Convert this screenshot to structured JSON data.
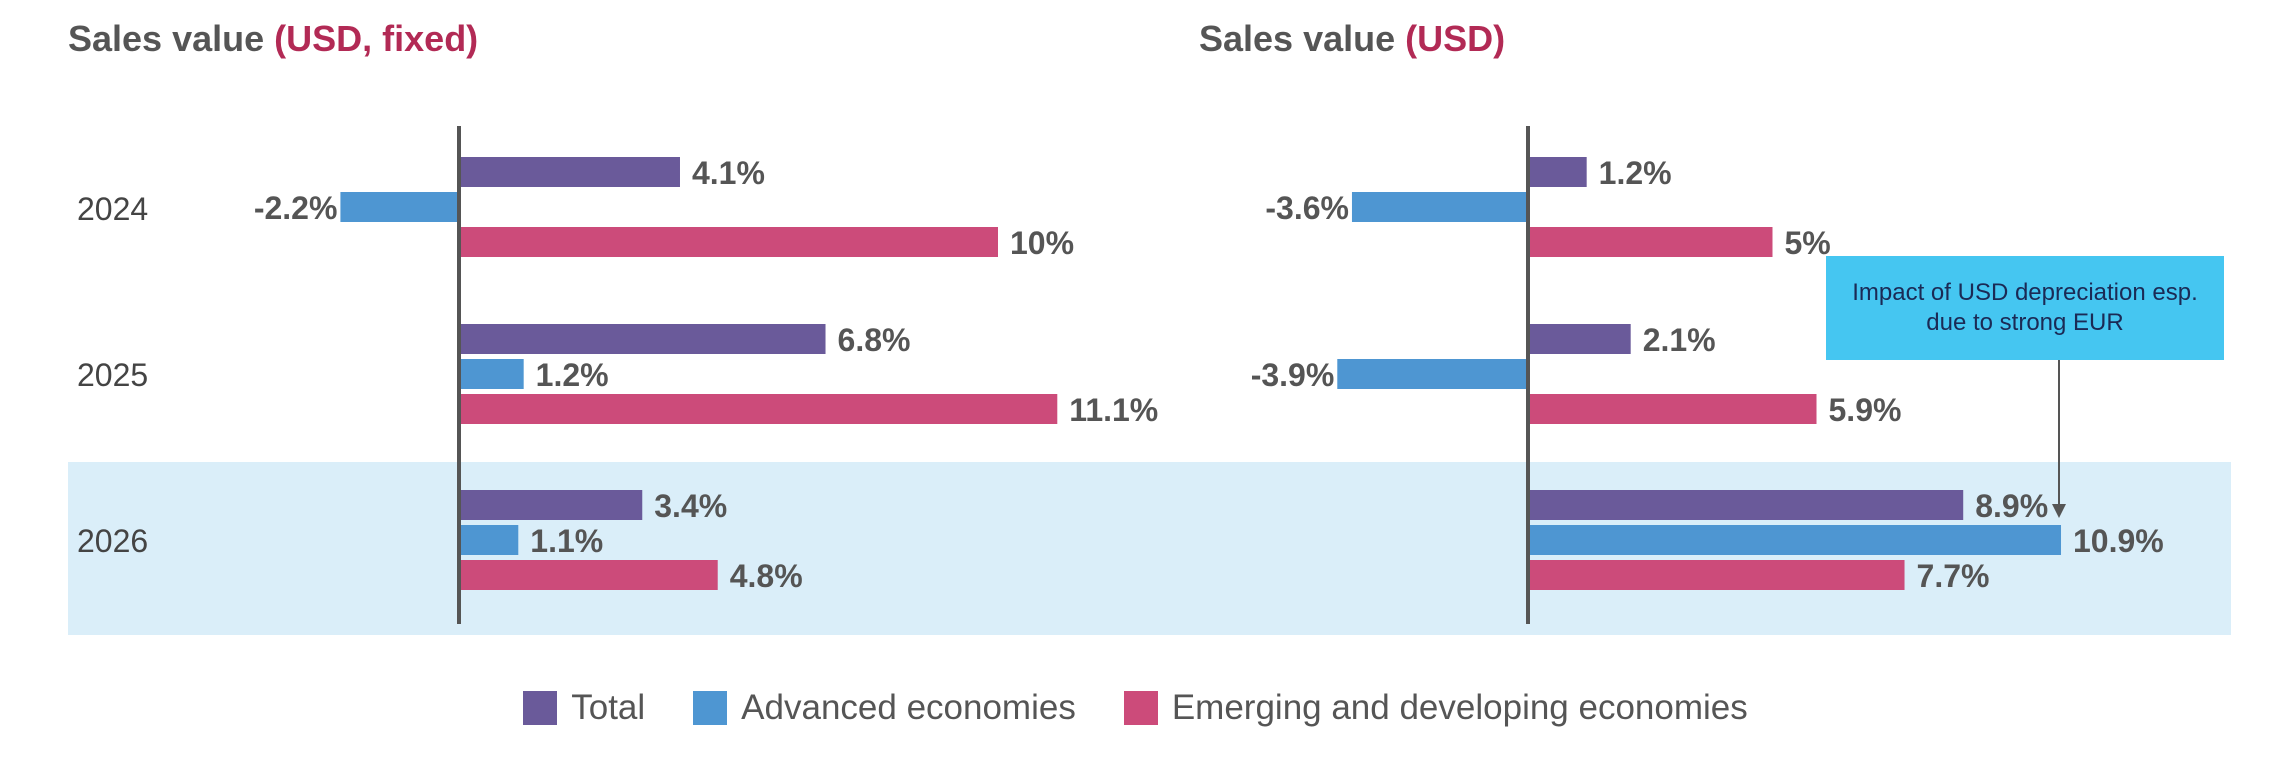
{
  "colors": {
    "total": "#6a5a9a",
    "advanced": "#4e96d2",
    "emerging": "#cc4b7a",
    "highlight_band": "#daeef9",
    "axis": "#555555",
    "title_accent": "#b22a55"
  },
  "chart_data": [
    {
      "type": "bar",
      "orientation": "horizontal",
      "title_main": "Sales value",
      "title_accent": "(USD, fixed)",
      "categories": [
        "2024",
        "2025",
        "2026"
      ],
      "highlighted_category": "2026",
      "series": [
        {
          "name": "Total",
          "values": [
            4.1,
            6.8,
            3.4
          ],
          "labels": [
            "4.1%",
            "6.8%",
            "3.4%"
          ]
        },
        {
          "name": "Advanced economies",
          "values": [
            -2.2,
            1.2,
            1.1
          ],
          "labels": [
            "-2.2%",
            "1.2%",
            "1.1%"
          ]
        },
        {
          "name": "Emerging and developing economies",
          "values": [
            10,
            11.1,
            4.8
          ],
          "labels": [
            "10%",
            "11.1%",
            "4.8%"
          ]
        }
      ]
    },
    {
      "type": "bar",
      "orientation": "horizontal",
      "title_main": "Sales value",
      "title_accent": "(USD)",
      "categories": [
        "2024",
        "2025",
        "2026"
      ],
      "highlighted_category": "2026",
      "series": [
        {
          "name": "Total",
          "values": [
            1.2,
            2.1,
            8.9
          ],
          "labels": [
            "1.2%",
            "2.1%",
            "8.9%"
          ]
        },
        {
          "name": "Advanced economies",
          "values": [
            -3.6,
            -3.9,
            10.9
          ],
          "labels": [
            "-3.6%",
            "-3.9%",
            "10.9%"
          ]
        },
        {
          "name": "Emerging and developing economies",
          "values": [
            5,
            5.9,
            7.7
          ],
          "labels": [
            "5%",
            "5.9%",
            "7.7%"
          ]
        }
      ],
      "annotation": "Impact of USD depreciation esp. due to strong EUR"
    }
  ],
  "legend": {
    "items": [
      {
        "label": "Total"
      },
      {
        "label": "Advanced economies"
      },
      {
        "label": "Emerging and developing economies"
      }
    ]
  }
}
